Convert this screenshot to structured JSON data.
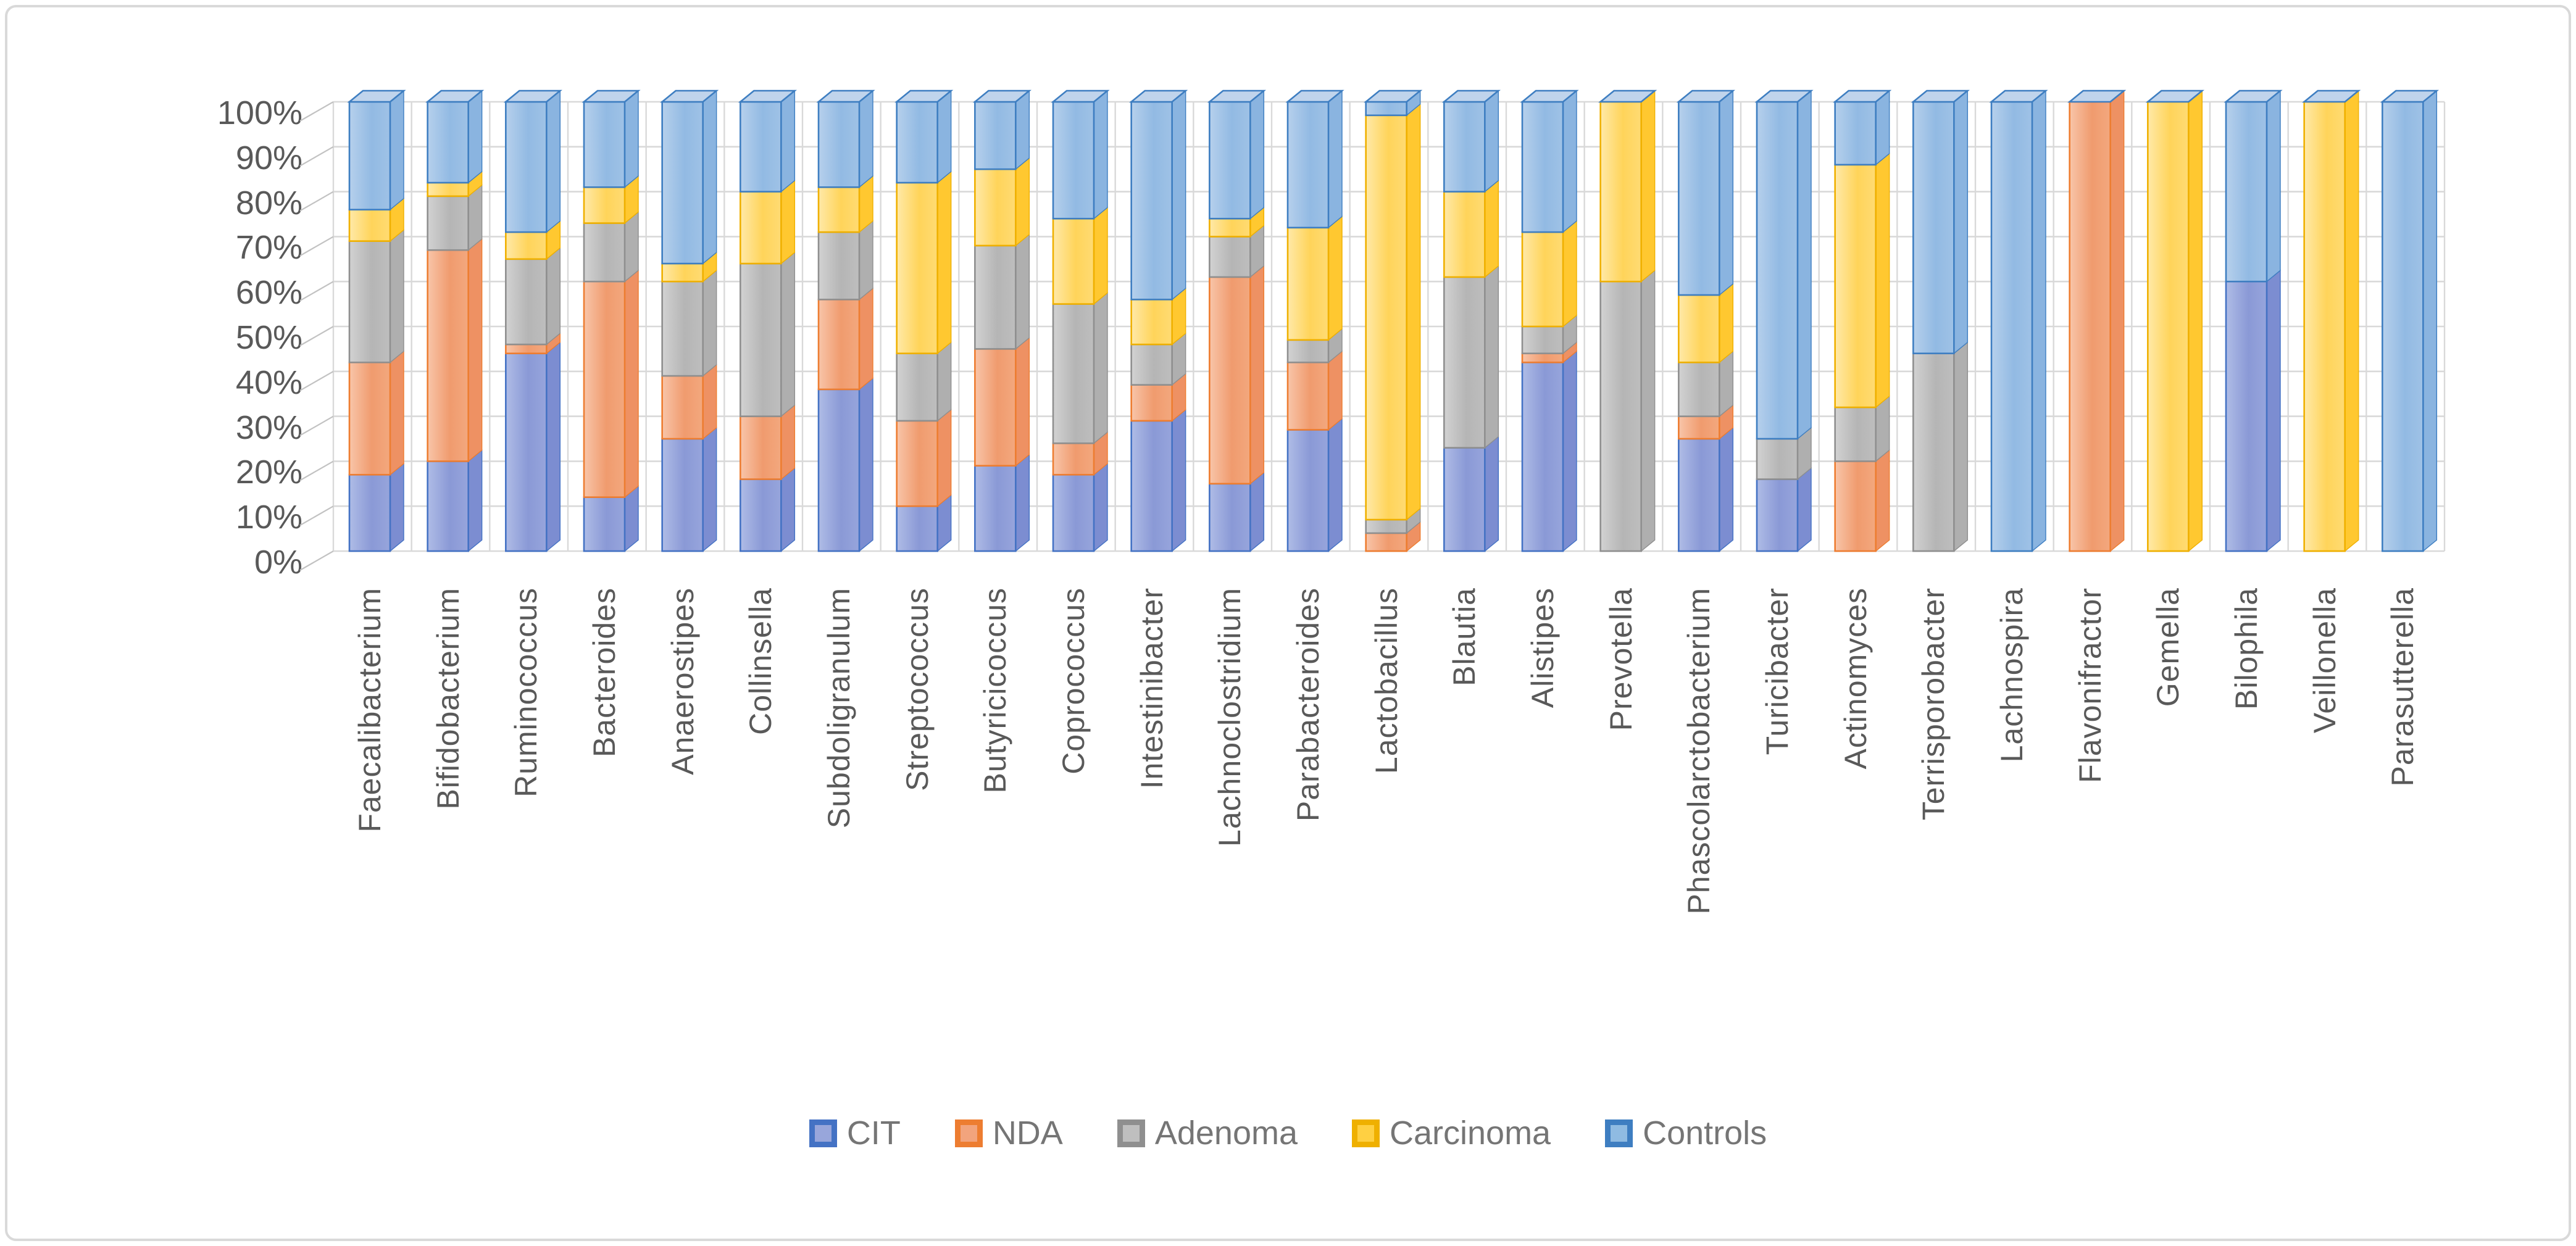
{
  "frame": {
    "border_color": "#D9D9D9",
    "background": "#FFFFFF"
  },
  "chart_data": {
    "type": "bar",
    "subtype": "100-percent-stacked-3d",
    "title": "",
    "xlabel": "",
    "ylabel": "",
    "ylim": [
      0,
      100
    ],
    "grid": true,
    "legend_position": "bottom",
    "categories": [
      "Faecalibacterium",
      "Bifidobacterium",
      "Ruminococcus",
      "Bacteroides",
      "Anaerostipes",
      "Collinsella",
      "Subdoligranulum",
      "Streptococcus",
      "Butyricicoccus",
      "Coprococcus",
      "Intestinibacter",
      "Lachnoclostridium",
      "Parabacteroides",
      "Lactobacillus",
      "Blautia",
      "Alistipes",
      "Prevotella",
      "Phascolarctobacterium",
      "Turicibacter",
      "Actinomyces",
      "Terrisporobacter",
      "Lachnospira",
      "Flavonifractor",
      "Gemella",
      "Bilophila",
      "Veillonella",
      "Parasutterella"
    ],
    "series": [
      {
        "name": "CIT",
        "color": "#4472C4",
        "fill": "#8A99D6",
        "fill_light": "#AFBCE6",
        "fill_mid": "#97A5DC",
        "side": "#7C8DD1",
        "legend_fill": "#98A6DB",
        "values": [
          17,
          20,
          44,
          12,
          25,
          16,
          36,
          10,
          19,
          17,
          29,
          15,
          27,
          0,
          23,
          42,
          0,
          25,
          16,
          0,
          0,
          0,
          0,
          0,
          60,
          0,
          0
        ]
      },
      {
        "name": "NDA",
        "color": "#ED7D31",
        "fill": "#F09B6E",
        "fill_light": "#F8C5A9",
        "fill_mid": "#F3A87E",
        "side": "#EE9163",
        "legend_fill": "#F2A47D",
        "values": [
          25,
          47,
          2,
          48,
          14,
          14,
          20,
          19,
          26,
          7,
          8,
          46,
          15,
          4,
          0,
          2,
          0,
          5,
          0,
          20,
          0,
          0,
          100,
          0,
          0,
          0,
          0
        ]
      },
      {
        "name": "Adenoma",
        "color": "#8F8F8F",
        "fill": "#B5B5B5",
        "fill_light": "#D2D2D2",
        "fill_mid": "#BEBEBE",
        "side": "#AFAFAF",
        "legend_fill": "#BFBFBF",
        "values": [
          27,
          12,
          19,
          13,
          21,
          34,
          15,
          15,
          23,
          31,
          9,
          9,
          5,
          3,
          38,
          6,
          60,
          12,
          9,
          12,
          44,
          0,
          0,
          0,
          0,
          0,
          0
        ]
      },
      {
        "name": "Carcinoma",
        "color": "#EFB000",
        "fill": "#FFD45A",
        "fill_light": "#FFE9A8",
        "fill_mid": "#FFDB73",
        "side": "#FFC830",
        "legend_fill": "#FFD042",
        "values": [
          7,
          3,
          6,
          8,
          4,
          16,
          10,
          38,
          17,
          19,
          10,
          4,
          25,
          90,
          19,
          21,
          40,
          15,
          0,
          54,
          0,
          0,
          0,
          100,
          0,
          100,
          0
        ]
      },
      {
        "name": "Controls",
        "color": "#3E7EC1",
        "fill": "#92BAE3",
        "fill_light": "#B6D0EC",
        "fill_mid": "#9FC2E6",
        "side": "#8AB4E0",
        "legend_fill": "#8FBBE2",
        "values": [
          24,
          18,
          29,
          19,
          36,
          20,
          19,
          18,
          15,
          26,
          44,
          26,
          28,
          3,
          20,
          29,
          0,
          43,
          75,
          14,
          56,
          100,
          0,
          0,
          40,
          0,
          100
        ]
      }
    ],
    "cap": {
      "fill": "#C0D4EC",
      "stroke": "#3E7EC1"
    },
    "y_axis": {
      "ticks": [
        "0%",
        "10%",
        "20%",
        "30%",
        "40%",
        "50%",
        "60%",
        "70%",
        "80%",
        "90%",
        "100%"
      ],
      "grid_color": "#D9D9D9",
      "tick_color": "#C2C2C2",
      "label_color": "#595959"
    },
    "x_axis": {
      "label_color": "#595959"
    },
    "legend": {
      "labels": [
        "CIT",
        "NDA",
        "Adenoma",
        "Carcinoma",
        "Controls"
      ],
      "text_color": "#757575"
    }
  }
}
